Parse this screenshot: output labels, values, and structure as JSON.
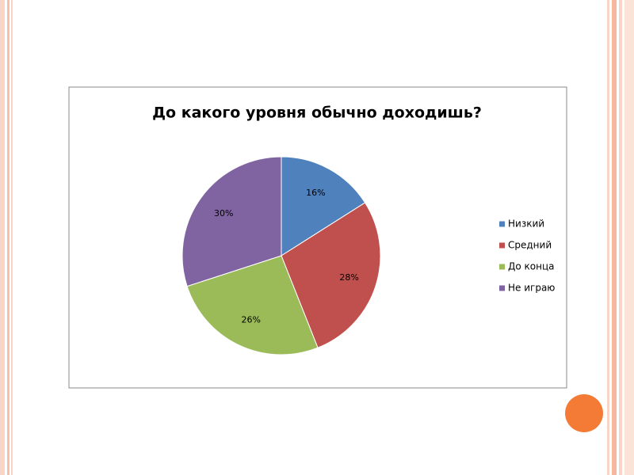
{
  "chart_data": {
    "type": "pie",
    "title": "До какого уровня обычно доходишь?",
    "categories": [
      "Низкий",
      "Средний",
      "До конца",
      "Не играю"
    ],
    "values": [
      16,
      28,
      26,
      30
    ],
    "value_labels": [
      "16%",
      "28%",
      "26%",
      "30%"
    ],
    "colors": [
      "#4f81bd",
      "#c0504d",
      "#9bbb59",
      "#8064a2"
    ],
    "legend": "right"
  }
}
